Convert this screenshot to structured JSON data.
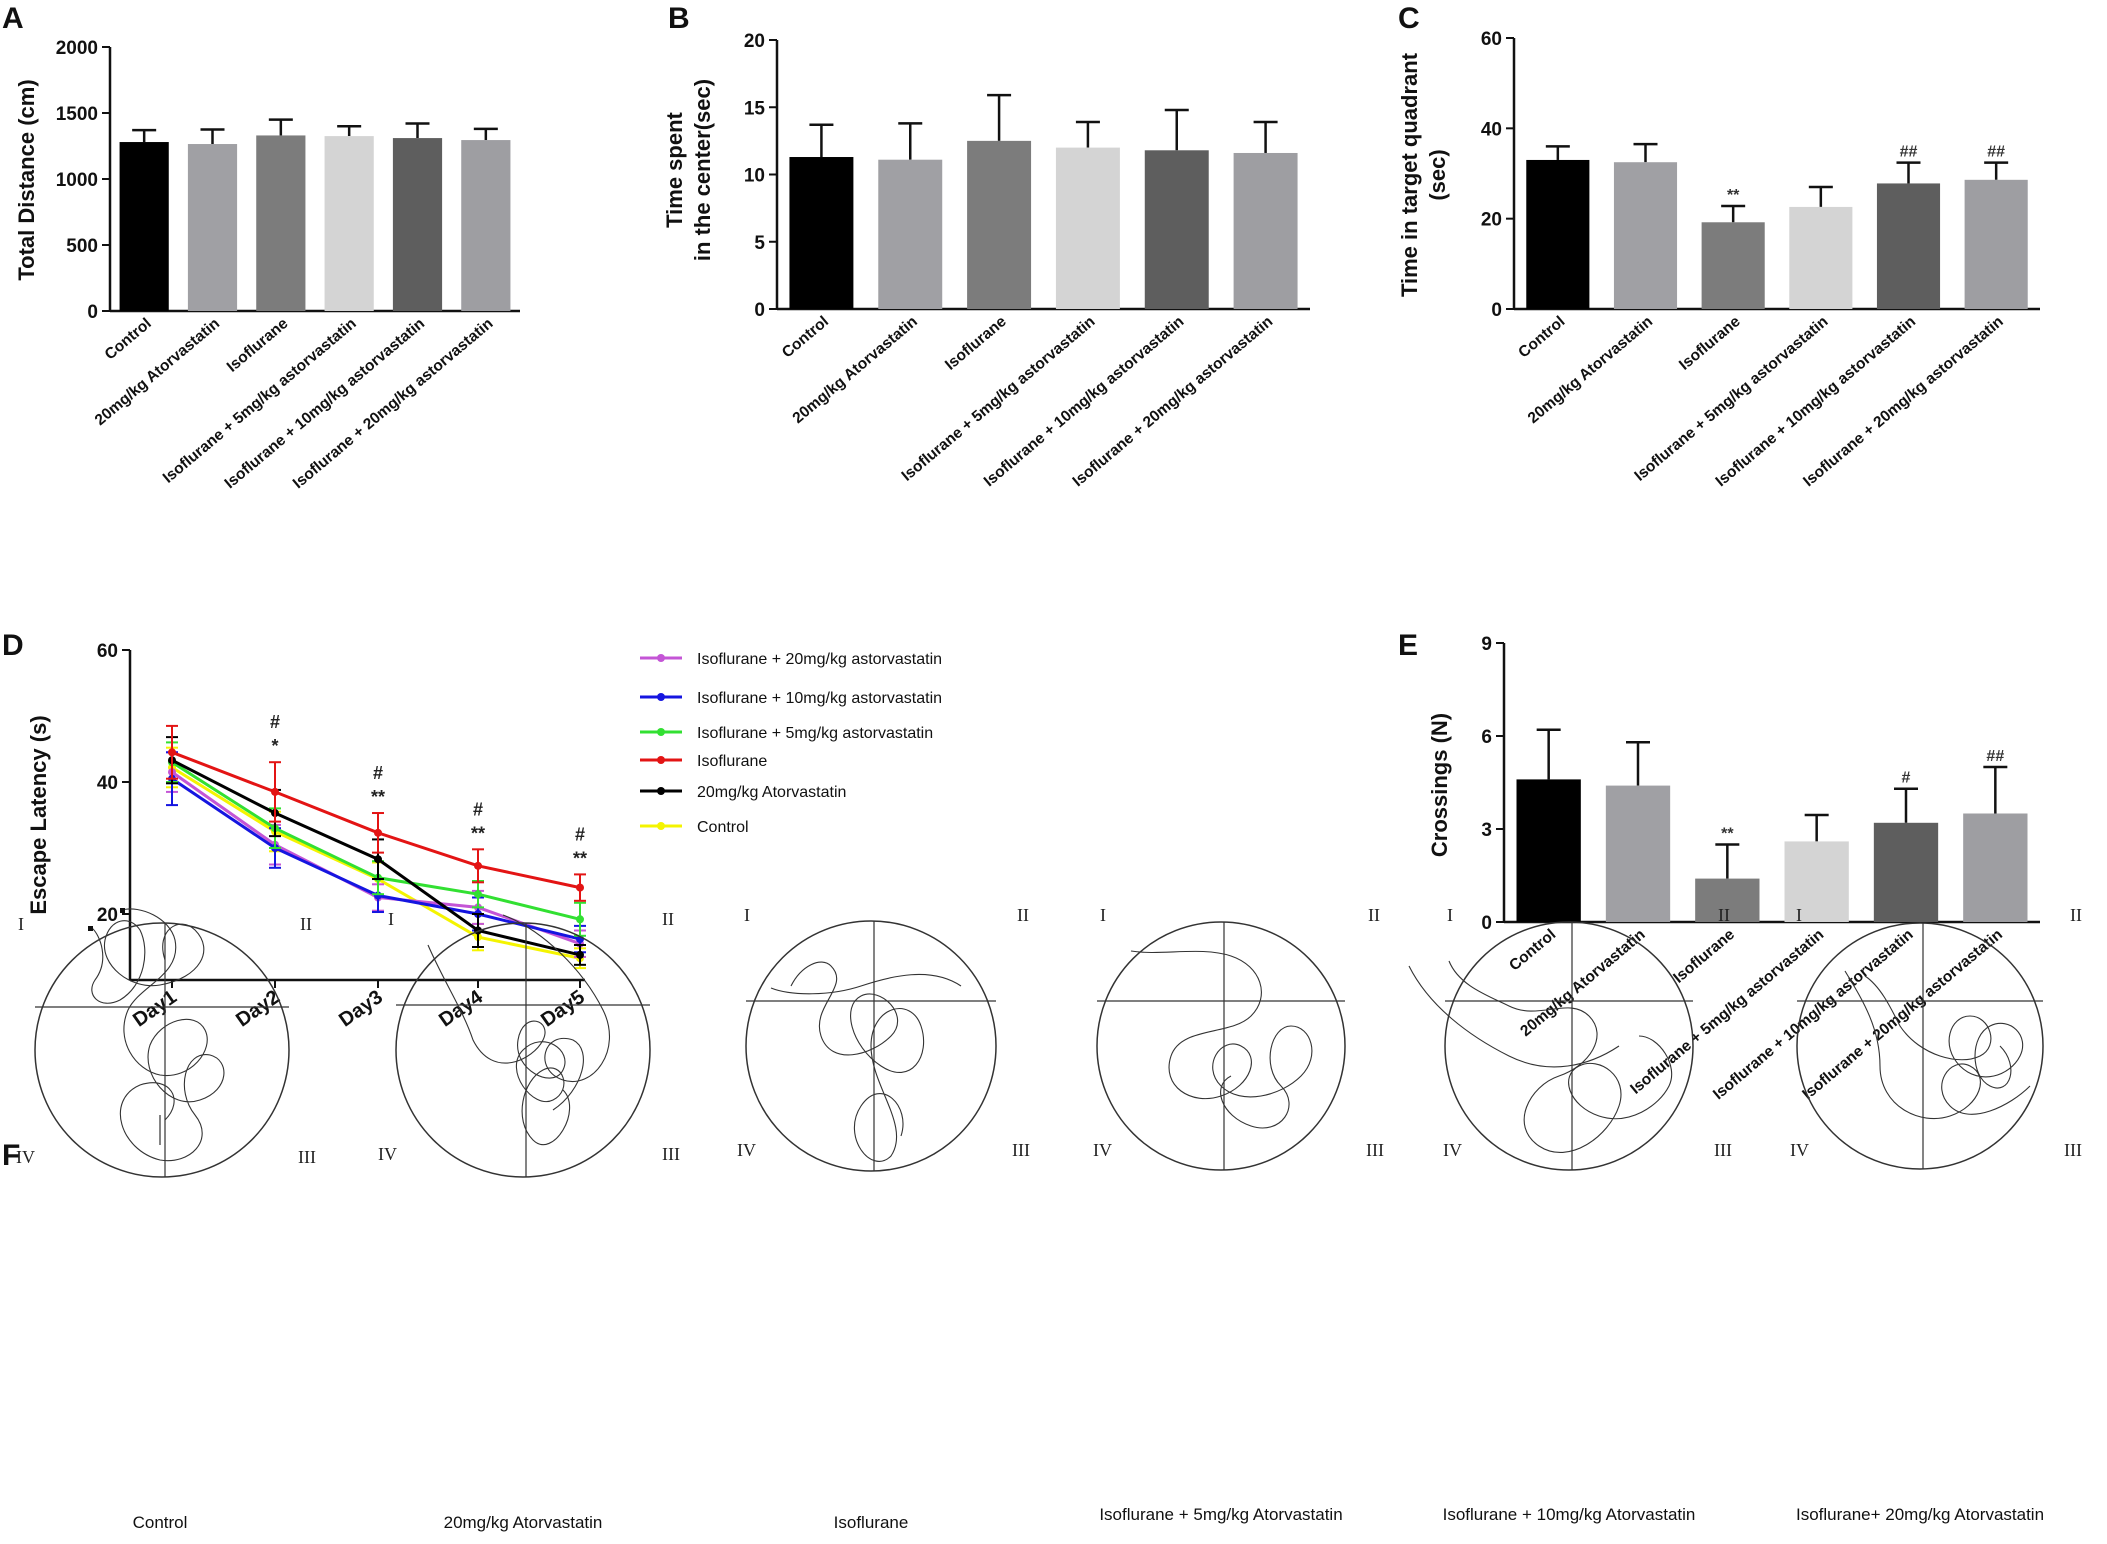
{
  "panel_letters": {
    "A": "A",
    "B": "B",
    "C": "C",
    "D": "D",
    "E": "E",
    "F": "F"
  },
  "colors": {
    "bars": [
      "#000000",
      "#a0a0a4",
      "#7c7c7c",
      "#d4d4d4",
      "#5e5e5e",
      "#9e9ea2"
    ],
    "lines": [
      "#c455d6",
      "#1515e0",
      "#32e032",
      "#e31414",
      "#000000",
      "#f4f400"
    ]
  },
  "chart_data": [
    {
      "id": "A",
      "type": "bar",
      "ylabel": "Total Distance (cm)",
      "ylim": [
        0,
        2000
      ],
      "yticks": [
        0,
        500,
        1000,
        1500,
        2000
      ],
      "categories": [
        "Control",
        "20mg/kg Atorvastatin",
        "Isoflurane",
        "Isoflurane + 5mg/kg astorvastatin",
        "Isoflurane + 10mg/kg astorvastatin",
        "Isoflurane + 20mg/kg astorvastatin"
      ],
      "values": [
        1280,
        1265,
        1330,
        1325,
        1310,
        1295
      ],
      "errors": [
        90,
        110,
        120,
        75,
        110,
        85
      ],
      "sig": [
        "",
        "",
        "",
        "",
        "",
        ""
      ]
    },
    {
      "id": "B",
      "type": "bar",
      "ylabel": [
        "Time spent",
        "in the center(sec)"
      ],
      "ylim": [
        0,
        20
      ],
      "yticks": [
        0,
        5,
        10,
        15,
        20
      ],
      "categories": [
        "Control",
        "20mg/kg Atorvastatin",
        "Isoflurane",
        "Isoflurane + 5mg/kg astorvastatin",
        "Isoflurane + 10mg/kg astorvastatin",
        "Isoflurane + 20mg/kg astorvastatin"
      ],
      "values": [
        11.3,
        11.1,
        12.5,
        12.0,
        11.8,
        11.6
      ],
      "errors": [
        2.4,
        2.7,
        3.4,
        1.9,
        3.0,
        2.3
      ],
      "sig": [
        "",
        "",
        "",
        "",
        "",
        ""
      ]
    },
    {
      "id": "C",
      "type": "bar",
      "ylabel": [
        "Time in target quadrant",
        "(sec)"
      ],
      "ylim": [
        0,
        60
      ],
      "yticks": [
        0,
        20,
        40,
        60
      ],
      "categories": [
        "Control",
        "20mg/kg Atorvastatin",
        "Isoflurane",
        "Isoflurane + 5mg/kg astorvastatin",
        "Isoflurane + 10mg/kg astorvastatin",
        "Isoflurane + 20mg/kg astorvastatin"
      ],
      "values": [
        33.0,
        32.5,
        19.2,
        22.6,
        27.8,
        28.6
      ],
      "errors": [
        3.0,
        4.0,
        3.6,
        4.4,
        4.6,
        3.8
      ],
      "sig": [
        "",
        "",
        "**",
        "",
        "##",
        "##"
      ]
    },
    {
      "id": "D",
      "type": "line",
      "ylabel": "Escape Latency (s)",
      "ylim": [
        10,
        60
      ],
      "yticks": [
        20,
        40,
        60
      ],
      "x": [
        "Day1",
        "Day2",
        "Day3",
        "Day4",
        "Day5"
      ],
      "series": [
        {
          "name": "Isoflurane + 20mg/kg astorvastatin",
          "marker": "circle",
          "values": [
            41.5,
            30.5,
            22.5,
            21.0,
            15.5
          ],
          "errors": [
            3.0,
            3.0,
            2.0,
            2.5,
            2.0
          ]
        },
        {
          "name": "Isoflurane + 10mg/kg astorvastatin",
          "marker": "diamond",
          "values": [
            40.5,
            30.0,
            22.8,
            20.0,
            16.2
          ],
          "errors": [
            4.0,
            3.0,
            2.5,
            2.5,
            2.0
          ]
        },
        {
          "name": "Isoflurane + 5mg/kg astorvastatin",
          "marker": "triangle-down",
          "values": [
            43.0,
            33.0,
            25.5,
            23.0,
            19.2
          ],
          "errors": [
            3.0,
            3.0,
            2.5,
            2.0,
            2.5
          ]
        },
        {
          "name": "Isoflurane",
          "marker": "triangle-up",
          "values": [
            44.5,
            38.5,
            32.3,
            27.3,
            24.0
          ],
          "errors": [
            4.0,
            4.5,
            3.0,
            2.5,
            2.0
          ]
        },
        {
          "name": "20mg/kg Atorvastatin",
          "marker": "square",
          "values": [
            43.3,
            35.3,
            28.3,
            17.5,
            13.8
          ],
          "errors": [
            3.5,
            3.5,
            3.0,
            2.5,
            1.5
          ]
        },
        {
          "name": "Control",
          "marker": "triangle-left",
          "values": [
            42.2,
            32.5,
            25.3,
            16.5,
            13.3
          ],
          "errors": [
            3.0,
            3.0,
            2.5,
            2.0,
            1.5
          ]
        }
      ],
      "annotations": [
        {
          "x": "Day2",
          "top": "#",
          "bottom": "*"
        },
        {
          "x": "Day3",
          "top": "#",
          "bottom": "**"
        },
        {
          "x": "Day4",
          "top": "#",
          "bottom": "**"
        },
        {
          "x": "Day5",
          "top": "#",
          "bottom": "**"
        }
      ]
    },
    {
      "id": "E",
      "type": "bar",
      "ylabel": "Crossings (N)",
      "ylim": [
        0,
        9
      ],
      "yticks": [
        0,
        3,
        6,
        9
      ],
      "categories": [
        "Control",
        "20mg/kg Atorvastatin",
        "Isoflurane",
        "Isoflurane + 5mg/kg astorvastatin",
        "Isoflurane + 10mg/kg astorvastatin",
        "Isoflurane + 20mg/kg astorvastatin"
      ],
      "values": [
        4.6,
        4.4,
        1.4,
        2.6,
        3.2,
        3.5
      ],
      "errors": [
        1.6,
        1.4,
        1.1,
        0.85,
        1.1,
        1.5
      ],
      "sig": [
        "",
        "",
        "**",
        "",
        "#",
        "##"
      ]
    }
  ],
  "tracks": {
    "quadrant_labels": [
      "I",
      "II",
      "III",
      "IV"
    ],
    "captions": [
      "Control",
      "20mg/kg Atorvastatin",
      "Isoflurane",
      "Isoflurane + 5mg/kg Atorvastatin",
      "Isoflurane + 10mg/kg Atorvastatin",
      "Isoflurane+ 20mg/kg Atorvastatin"
    ]
  }
}
